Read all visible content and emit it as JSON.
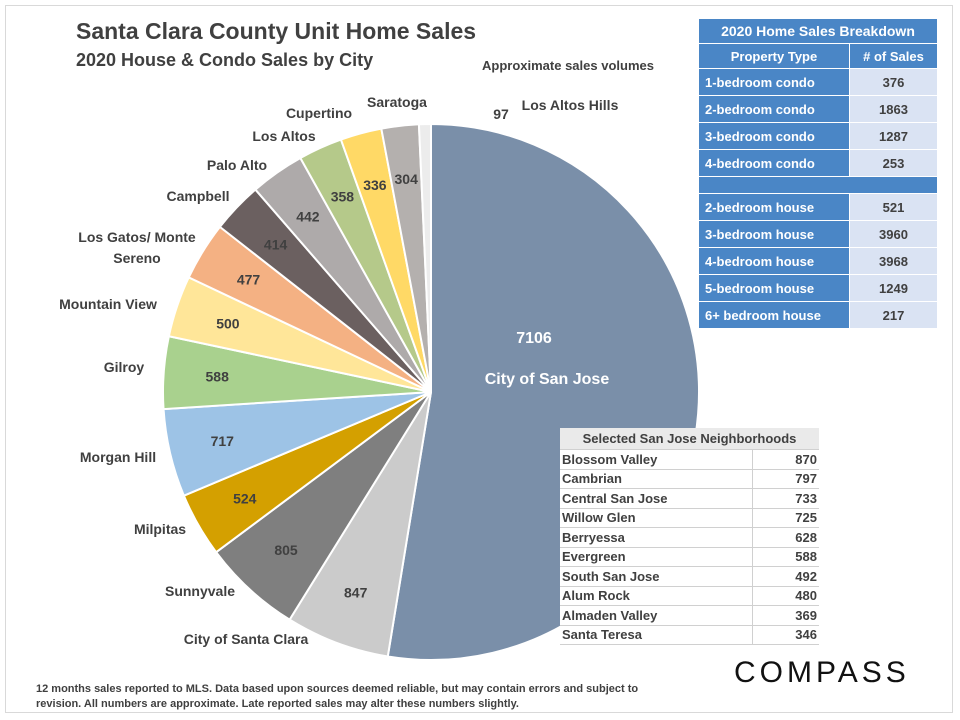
{
  "header": {
    "title": "Santa Clara County Unit Home Sales",
    "subtitle": "2020 House  & Condo  Sales by City",
    "note": "Approximate sales volumes"
  },
  "chart_data": {
    "type": "pie",
    "title": "Santa Clara County Unit Home Sales",
    "subtitle": "2020 House  & Condo  Sales by City",
    "slices": [
      {
        "label": "City of San Jose",
        "value": 7106,
        "color": "#7a8fa9"
      },
      {
        "label": "City of Santa Clara",
        "value": 847,
        "color": "#cbcbcb"
      },
      {
        "label": "Sunnyvale",
        "value": 805,
        "color": "#7f7f7f"
      },
      {
        "label": "Milpitas",
        "value": 524,
        "color": "#d4a000"
      },
      {
        "label": "Morgan Hill",
        "value": 717,
        "color": "#9dc3e6"
      },
      {
        "label": "Gilroy",
        "value": 588,
        "color": "#a9d18e"
      },
      {
        "label": "Mountain View",
        "value": 500,
        "color": "#ffe699"
      },
      {
        "label": "Los Gatos/ Monte Sereno",
        "value": 477,
        "color": "#f4b183"
      },
      {
        "label": "Campbell",
        "value": 414,
        "color": "#6b6060"
      },
      {
        "label": "Palo Alto",
        "value": 442,
        "color": "#aeaaaa"
      },
      {
        "label": "Los Altos",
        "value": 358,
        "color": "#b5c98a"
      },
      {
        "label": "Cupertino",
        "value": 336,
        "color": "#ffd966"
      },
      {
        "label": "Saratoga",
        "value": 304,
        "color": "#b4b0ae"
      },
      {
        "label": "Los Altos Hills",
        "value": 97,
        "color": "#ececec"
      }
    ],
    "city_label_lines": {
      "Los Gatos/ Monte Sereno": [
        "Los Gatos/ Monte",
        "Sereno"
      ]
    }
  },
  "breakdown": {
    "title": "2020 Home Sales Breakdown",
    "col_type": "Property Type",
    "col_count": "# of Sales",
    "condos": [
      {
        "type": "1-bedroom condo",
        "count": "376"
      },
      {
        "type": "2-bedroom condo",
        "count": "1863"
      },
      {
        "type": "3-bedroom condo",
        "count": "1287"
      },
      {
        "type": "4-bedroom condo",
        "count": "253"
      }
    ],
    "houses": [
      {
        "type": "2-bedroom house",
        "count": "521"
      },
      {
        "type": "3-bedroom house",
        "count": "3960"
      },
      {
        "type": "4-bedroom house",
        "count": "3968"
      },
      {
        "type": "5-bedroom house",
        "count": "1249"
      },
      {
        "type": "6+ bedroom house",
        "count": "217"
      }
    ]
  },
  "neighborhoods": {
    "title": "Selected San Jose Neighborhoods",
    "rows": [
      {
        "name": "Blossom Valley",
        "value": "870"
      },
      {
        "name": "Cambrian",
        "value": "797"
      },
      {
        "name": "Central San Jose",
        "value": "733"
      },
      {
        "name": "Willow Glen",
        "value": "725"
      },
      {
        "name": "Berryessa",
        "value": "628"
      },
      {
        "name": "Evergreen",
        "value": "588"
      },
      {
        "name": "South San Jose",
        "value": "492"
      },
      {
        "name": "Alum Rock",
        "value": "480"
      },
      {
        "name": "Almaden Valley",
        "value": "369"
      },
      {
        "name": "Santa Teresa",
        "value": "346"
      }
    ]
  },
  "footnote": "12 months sales reported to MLS. Data based upon sources deemed reliable, but may contain errors and subject to revision. All numbers are approximate. Late reported sales may alter these numbers slightly.",
  "logo": "COMPASS"
}
